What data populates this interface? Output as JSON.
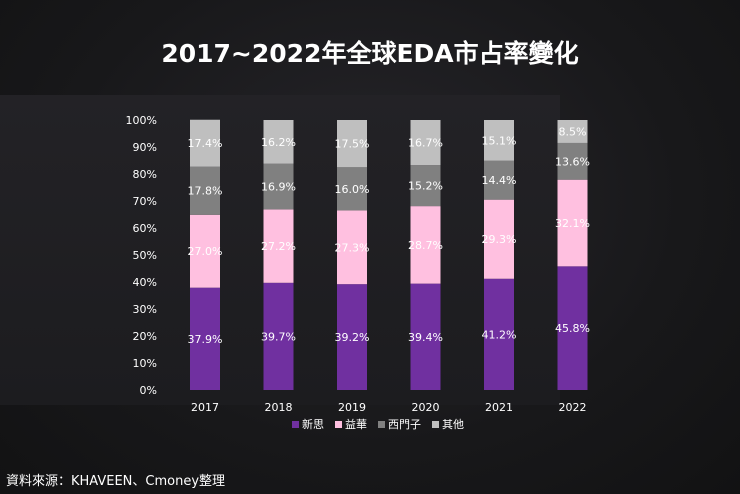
{
  "title": "2017~2022年全球EDA市占率變化",
  "source": "資料來源：KHAVEEN、Cmoney整理",
  "chart_data": {
    "type": "bar",
    "stacked": true,
    "title": "2017~2022年全球EDA市占率變化",
    "categories": [
      "2017",
      "2018",
      "2019",
      "2020",
      "2021",
      "2022"
    ],
    "series": [
      {
        "name": "新思",
        "color": "#7030a0",
        "values": [
          37.9,
          39.7,
          39.2,
          39.4,
          41.2,
          45.8
        ]
      },
      {
        "name": "益華",
        "color": "#ffc0e0",
        "values": [
          27.0,
          27.2,
          27.3,
          28.7,
          29.3,
          32.1
        ]
      },
      {
        "name": "西門子",
        "color": "#808080",
        "values": [
          17.8,
          16.9,
          16.0,
          15.2,
          14.4,
          13.6
        ]
      },
      {
        "name": "其他",
        "color": "#bfbfbf",
        "values": [
          17.4,
          16.2,
          17.5,
          16.7,
          15.1,
          8.5
        ]
      }
    ],
    "yticks": [
      "0%",
      "10%",
      "20%",
      "30%",
      "40%",
      "50%",
      "60%",
      "70%",
      "80%",
      "90%",
      "100%"
    ],
    "ylim": [
      0,
      100
    ],
    "grid": false,
    "legend": "bottom"
  }
}
